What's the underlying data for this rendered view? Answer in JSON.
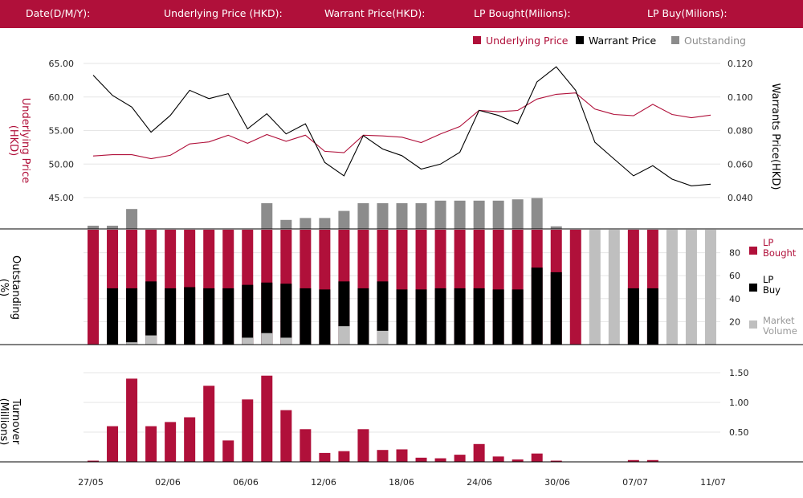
{
  "header": {
    "date_label": "Date(D/M/Y):",
    "underlying_label": "Underlying Price (HKD):",
    "warrant_label": "Warrant  Price(HKD):",
    "lp_bought_label": "LP Bought(Milions):",
    "lp_buy_label": "LP Buy(Milions):"
  },
  "colors": {
    "brand": "#b0103a",
    "underlying": "#b0103a",
    "warrant": "#000000",
    "outstanding": "#8c8c8c",
    "lp_bought": "#b0103a",
    "lp_buy": "#000000",
    "market_volume": "#bfbfbf"
  },
  "chart_data": [
    {
      "type": "line",
      "title": "",
      "ylabel": "Underlying Price\n(HKD)",
      "y2label": "Warrants  Price(HKD)",
      "ylim": [
        40,
        67
      ],
      "y2lim": [
        0.02,
        0.128
      ],
      "yticks": [
        "65.00",
        "60.00",
        "55.00",
        "50.00",
        "45.00"
      ],
      "y2ticks": [
        "0.120",
        "0.100",
        "0.080",
        "0.060",
        "0.040"
      ],
      "legend": [
        "Underlying Price",
        "Warrant  Price",
        "Outstanding"
      ],
      "legend_position": "top-right",
      "x_labels": [
        "27/05",
        "02/06",
        "06/06",
        "12/06",
        "18/06",
        "24/06",
        "30/06",
        "07/07",
        "11/07"
      ],
      "series": [
        {
          "name": "Underlying Price",
          "axis": "left",
          "values": [
            51.2,
            51.4,
            51.4,
            50.8,
            51.3,
            53.0,
            53.3,
            54.3,
            53.1,
            54.4,
            53.4,
            54.3,
            51.9,
            51.7,
            54.3,
            54.2,
            54.0,
            53.2,
            54.5,
            55.6,
            58.0,
            57.8,
            58.0,
            59.7,
            60.4,
            60.6,
            58.2,
            57.4,
            57.2,
            58.9,
            57.4,
            56.9,
            57.3
          ]
        },
        {
          "name": "Warrant  Price",
          "axis": "right",
          "values": [
            0.113,
            0.101,
            0.094,
            0.079,
            0.089,
            0.104,
            0.099,
            0.102,
            0.081,
            0.09,
            0.078,
            0.084,
            0.061,
            0.053,
            0.077,
            0.069,
            0.065,
            0.057,
            0.06,
            0.067,
            0.092,
            0.089,
            0.084,
            0.109,
            0.118,
            0.104,
            0.073,
            0.063,
            0.053,
            0.059,
            0.051,
            0.047,
            0.048
          ]
        },
        {
          "name": "Outstanding",
          "axis": "percent",
          "values": [
            5,
            5,
            31,
            0,
            0,
            0,
            0,
            0,
            0,
            40,
            14,
            17,
            17,
            28,
            40,
            40,
            40,
            40,
            44,
            44,
            44,
            44,
            46,
            48,
            4,
            0,
            0,
            0,
            0,
            0,
            0,
            0,
            0
          ]
        }
      ]
    },
    {
      "type": "bar",
      "ylabel": "Outstanding\n(%)",
      "ylim": [
        0,
        100
      ],
      "yticks": [
        "80",
        "60",
        "40",
        "20"
      ],
      "legend": [
        "LP\nBought",
        "LP\nBuy",
        "Market\nVolume"
      ],
      "legend_position": "right",
      "series": [
        {
          "name": "LP Bought",
          "values": [
            100,
            100,
            100,
            100,
            100,
            100,
            100,
            100,
            100,
            100,
            100,
            100,
            100,
            100,
            100,
            100,
            100,
            100,
            100,
            100,
            100,
            100,
            100,
            100,
            100,
            100,
            0,
            0,
            100,
            100,
            0,
            0,
            0
          ]
        },
        {
          "name": "LP Buy",
          "values": [
            0,
            49,
            49,
            55,
            49,
            50,
            49,
            49,
            52,
            54,
            53,
            49,
            48,
            55,
            49,
            55,
            48,
            48,
            49,
            49,
            49,
            48,
            48,
            67,
            63,
            0,
            0,
            0,
            49,
            49,
            0,
            0,
            0
          ]
        },
        {
          "name": "Market Volume",
          "values": [
            0,
            0,
            2,
            8,
            0,
            0,
            0,
            0,
            6,
            10,
            6,
            0,
            0,
            16,
            0,
            12,
            0,
            0,
            0,
            0,
            0,
            0,
            0,
            0,
            0,
            0,
            100,
            100,
            0,
            0,
            100,
            100,
            100
          ]
        }
      ]
    },
    {
      "type": "bar",
      "ylabel": "Turnover\n(Millions)",
      "ylim": [
        0,
        1.6
      ],
      "yticks": [
        "1.50",
        "1.00",
        "0.50"
      ],
      "series": [
        {
          "name": "Turnover",
          "values": [
            0.02,
            0.6,
            1.4,
            0.6,
            0.67,
            0.75,
            1.28,
            0.36,
            1.05,
            1.45,
            0.87,
            0.55,
            0.15,
            0.18,
            0.55,
            0.2,
            0.21,
            0.07,
            0.06,
            0.12,
            0.3,
            0.09,
            0.04,
            0.14,
            0.02,
            0,
            0,
            0,
            0.03,
            0.03,
            0,
            0,
            0
          ]
        }
      ]
    }
  ]
}
